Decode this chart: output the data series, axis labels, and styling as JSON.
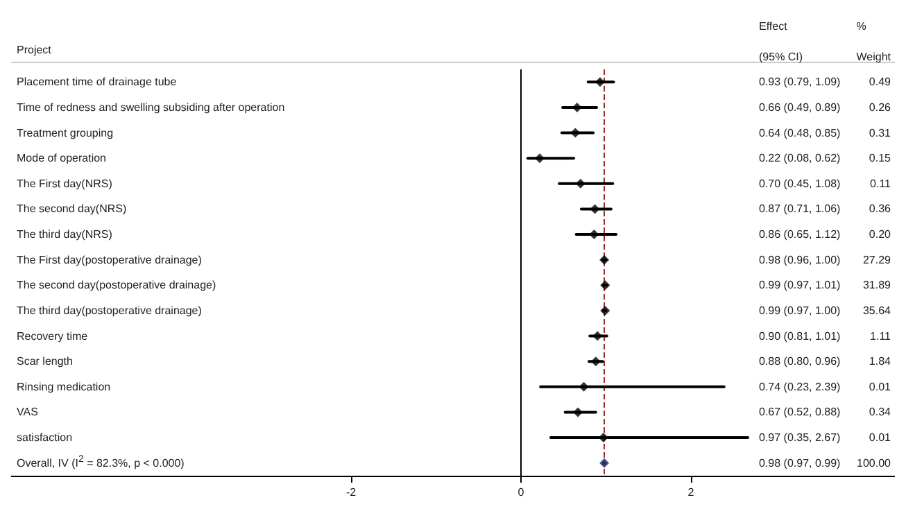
{
  "chart_data": {
    "type": "scatter",
    "orientation": "horizontal",
    "ylabel": "Project",
    "categories": [
      "Placement time of drainage tube",
      "Time of redness and swelling subsiding after operation",
      "Treatment grouping",
      "Mode of operation",
      "The First day(NRS)",
      "The second day(NRS)",
      "The third day(NRS)",
      "The First day(postoperative drainage)",
      "The second day(postoperative drainage)",
      "The third day(postoperative drainage)",
      "Recovery time",
      "Scar length",
      "Rinsing medication",
      "VAS",
      "satisfaction",
      "Overall, IV (I$^{2}$ = 82.3%, p < 0.000)"
    ],
    "values": [
      0.93,
      0.66,
      0.64,
      0.22,
      0.7,
      0.87,
      0.86,
      0.98,
      0.99,
      0.99,
      0.9,
      0.88,
      0.74,
      0.67,
      0.97,
      0.98
    ],
    "errors": [
      [
        0.79,
        1.09
      ],
      [
        0.49,
        0.89
      ],
      [
        0.48,
        0.85
      ],
      [
        0.08,
        0.62
      ],
      [
        0.45,
        1.08
      ],
      [
        0.71,
        1.06
      ],
      [
        0.65,
        1.12
      ],
      [
        0.96,
        1.0
      ],
      [
        0.97,
        1.01
      ],
      [
        0.97,
        1.0
      ],
      [
        0.81,
        1.01
      ],
      [
        0.8,
        0.96
      ],
      [
        0.23,
        2.39
      ],
      [
        0.52,
        0.88
      ],
      [
        0.35,
        2.67
      ],
      [
        0.97,
        0.99
      ]
    ],
    "colors": [
      "#000000",
      "#000000",
      "#000000",
      "#000000",
      "#000000",
      "#000000",
      "#000000",
      "#000000",
      "#000000",
      "#000000",
      "#000000",
      "#000000",
      "#000000",
      "#000000",
      "#000000",
      "#1f2a6b"
    ],
    "marker": "diamond",
    "grid": false,
    "xlim": [
      -6,
      4.4
    ],
    "xticks": [
      -2,
      0,
      2
    ],
    "ref_lines": [
      {
        "axis": "x",
        "value": 0,
        "color": "#000000",
        "line_style": "solid"
      },
      {
        "axis": "x",
        "value": 0.98,
        "color": "#a03030",
        "line_style": "dashed"
      }
    ],
    "annotations": [
      "Effect\n(95% CI)",
      "%\nWeight",
      "0.93 (0.79, 1.09)",
      "0.66 (0.49, 0.89)",
      "0.64 (0.48, 0.85)",
      "0.22 (0.08, 0.62)",
      "0.70 (0.45, 1.08)",
      "0.87 (0.71, 1.06)",
      "0.86 (0.65, 1.12)",
      "0.98 (0.96, 1.00)",
      "0.99 (0.97, 1.01)",
      "0.99 (0.97, 1.00)",
      "0.90 (0.81, 1.01)",
      "0.88 (0.80, 0.96)",
      "0.74 (0.23, 2.39)",
      "0.67 (0.52, 0.88)",
      "0.97 (0.35, 2.67)",
      "0.98 (0.97, 0.99)",
      "0.49",
      "0.26",
      "0.31",
      "0.15",
      "0.11",
      "0.36",
      "0.20",
      "27.29",
      "31.89",
      "35.64",
      "1.11",
      "1.84",
      "0.01",
      "0.34",
      "0.01",
      "100.00"
    ]
  }
}
